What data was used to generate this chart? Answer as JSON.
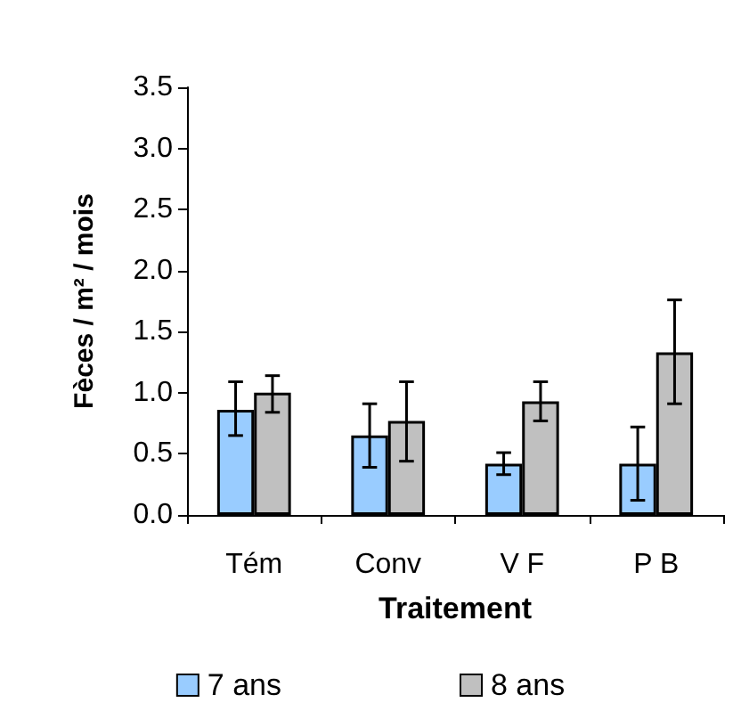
{
  "chart_data": {
    "type": "bar",
    "xlabel": "Traitement",
    "ylabel": "Fèces / m² / mois",
    "categories": [
      "Tém",
      "Conv",
      "V F",
      "P B"
    ],
    "series": [
      {
        "name": "7 ans",
        "color": "#99ccff",
        "values": [
          0.86,
          0.65,
          0.42,
          0.42
        ],
        "errors": [
          [
            0.65,
            1.09
          ],
          [
            0.39,
            0.91
          ],
          [
            0.33,
            0.51
          ],
          [
            0.12,
            0.72
          ]
        ]
      },
      {
        "name": "8 ans",
        "color": "#c0c0c0",
        "values": [
          1.0,
          0.77,
          0.93,
          1.33
        ],
        "errors": [
          [
            0.84,
            1.14
          ],
          [
            0.44,
            1.09
          ],
          [
            0.77,
            1.09
          ],
          [
            0.91,
            1.76
          ]
        ]
      }
    ],
    "ylim": [
      0,
      3.5
    ],
    "yticks": [
      {
        "value": 0,
        "label": "0.0"
      },
      0.5,
      {
        "value": 1,
        "label": "1.0"
      },
      1.5,
      {
        "value": 2,
        "label": "2.0"
      },
      2.5,
      {
        "value": 3,
        "label": "3.0"
      },
      3.5
    ],
    "grid": false,
    "legend": "bottom"
  }
}
